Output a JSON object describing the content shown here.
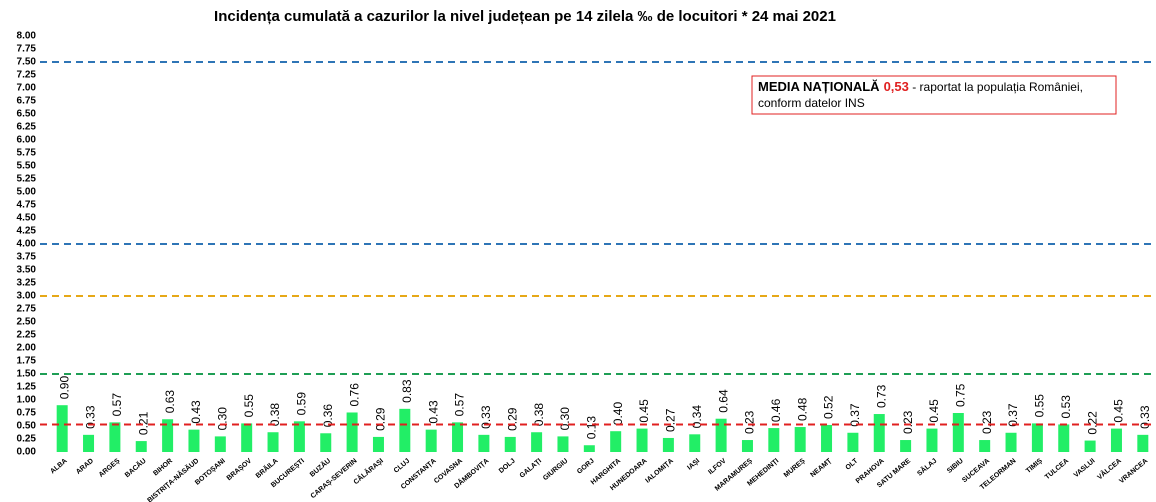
{
  "chart_data": {
    "type": "bar",
    "title": "Incidența cumulată a cazurilor la nivel județean pe 14 zilela ‰ de locuitori *  24 mai 2021",
    "categories": [
      "ALBA",
      "ARAD",
      "ARGEȘ",
      "BACĂU",
      "BIHOR",
      "BISTRIȚA-NĂSĂUD",
      "BOTOȘANI",
      "BRAȘOV",
      "BRĂILA",
      "BUCUREȘTI",
      "BUZĂU",
      "CARAȘ-SEVERIN",
      "CĂLĂRAȘI",
      "CLUJ",
      "CONSTANȚA",
      "COVASNA",
      "DÂMBOVIȚA",
      "DOLJ",
      "GALAȚI",
      "GIURGIU",
      "GORJ",
      "HARGHITA",
      "HUNEDOARA",
      "IALOMIȚA",
      "IAȘI",
      "ILFOV",
      "MARAMUREȘ",
      "MEHEDINȚI",
      "MUREȘ",
      "NEAMȚ",
      "OLT",
      "PRAHOVA",
      "SATU MARE",
      "SĂLAJ",
      "SIBIU",
      "SUCEAVA",
      "TELEORMAN",
      "TIMIȘ",
      "TULCEA",
      "VASLUI",
      "VÂLCEA",
      "VRANCEA"
    ],
    "values": [
      0.9,
      0.33,
      0.57,
      0.21,
      0.63,
      0.43,
      0.3,
      0.55,
      0.38,
      0.59,
      0.36,
      0.76,
      0.29,
      0.83,
      0.43,
      0.57,
      0.33,
      0.29,
      0.38,
      0.3,
      0.13,
      0.4,
      0.45,
      0.27,
      0.34,
      0.64,
      0.23,
      0.46,
      0.48,
      0.52,
      0.37,
      0.73,
      0.23,
      0.45,
      0.75,
      0.23,
      0.37,
      0.55,
      0.53,
      0.22,
      0.45,
      0.33
    ],
    "value_labels": [
      "0.90",
      "0.33",
      "0.57",
      "0.21",
      "0.63",
      "0.43",
      "0.30",
      "0.55",
      "0.38",
      "0.59",
      "0.36",
      "0.76",
      "0.29",
      "0.83",
      "0.43",
      "0.57",
      "0.33",
      "0.29",
      "0.38",
      "0.30",
      "0.13",
      "0.40",
      "0.45",
      "0.27",
      "0.34",
      "0.64",
      "0.23",
      "0.46",
      "0.48",
      "0.52",
      "0.37",
      "0.73",
      "0.23",
      "0.45",
      "0.75",
      "0.23",
      "0.37",
      "0.55",
      "0.53",
      "0.22",
      "0.45",
      "0.33"
    ],
    "color": "#22ee66",
    "ylim": [
      0,
      8
    ],
    "yticks": [
      {
        "value": 0,
        "label": "0.00"
      },
      {
        "value": 0.25,
        "label": "0.25"
      },
      {
        "value": 0.5,
        "label": "0.50"
      },
      {
        "value": 0.75,
        "label": "0.75"
      },
      {
        "value": 1,
        "label": "1.00"
      },
      {
        "value": 1.25,
        "label": "1.25"
      },
      {
        "value": 1.5,
        "label": "1.50"
      },
      {
        "value": 1.75,
        "label": "1.75"
      },
      {
        "value": 2,
        "label": "2.00"
      },
      {
        "value": 2.25,
        "label": "2.25"
      },
      {
        "value": 2.5,
        "label": "2.50"
      },
      {
        "value": 2.75,
        "label": "2.75"
      },
      {
        "value": 3,
        "label": "3.00"
      },
      {
        "value": 3.25,
        "label": "3.25"
      },
      {
        "value": 3.5,
        "label": "3.50"
      },
      {
        "value": 3.75,
        "label": "3.75"
      },
      {
        "value": 4,
        "label": "4.00"
      },
      {
        "value": 4.25,
        "label": "4.25"
      },
      {
        "value": 4.5,
        "label": "4.50"
      },
      {
        "value": 4.75,
        "label": "4.75"
      },
      {
        "value": 5,
        "label": "5.00"
      },
      {
        "value": 5.25,
        "label": "5.25"
      },
      {
        "value": 5.5,
        "label": "5.50"
      },
      {
        "value": 5.75,
        "label": "5.75"
      },
      {
        "value": 6,
        "label": "6.00"
      },
      {
        "value": 6.25,
        "label": "6.25"
      },
      {
        "value": 6.5,
        "label": "6.50"
      },
      {
        "value": 6.75,
        "label": "6.75"
      },
      {
        "value": 7,
        "label": "7.00"
      },
      {
        "value": 7.25,
        "label": "7.25"
      },
      {
        "value": 7.5,
        "label": "7.50"
      },
      {
        "value": 7.75,
        "label": "7.75"
      },
      {
        "value": 8,
        "label": "8.00"
      }
    ],
    "grid": false,
    "reference_lines": [
      {
        "value": 7.5,
        "color": "#2e75b6"
      },
      {
        "value": 4,
        "color": "#2e75b6"
      },
      {
        "value": 3,
        "color": "#e6a817"
      },
      {
        "value": 1.5,
        "color": "#1f9e55"
      },
      {
        "value": 0.53,
        "color": "#e02020"
      }
    ],
    "annotation": {
      "label": "MEDIA NAȚIONALĂ",
      "value_text": "0,53",
      "text": " - raportat la populația României,",
      "text2": "conform datelor INS"
    }
  }
}
